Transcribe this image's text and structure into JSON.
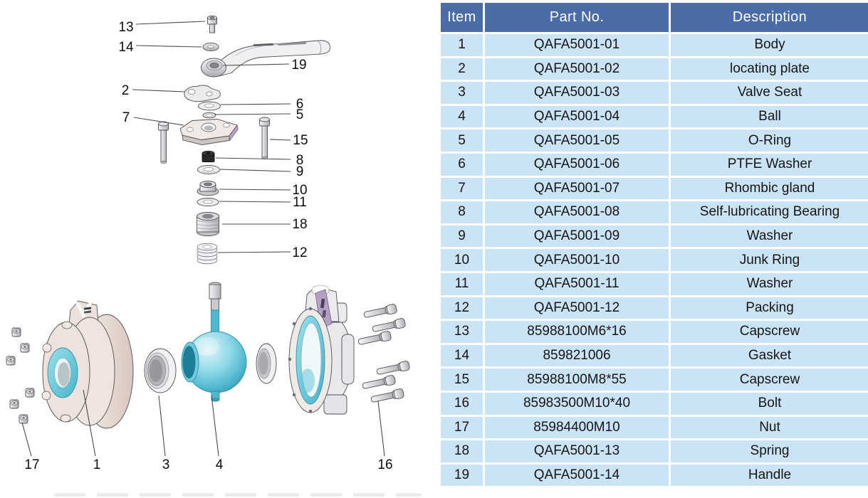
{
  "diagram": {
    "callouts": [
      "13",
      "14",
      "19",
      "2",
      "6",
      "5",
      "7",
      "15",
      "8",
      "9",
      "10",
      "11",
      "18",
      "12",
      "17",
      "1",
      "3",
      "4",
      "16"
    ]
  },
  "table": {
    "headers": [
      "Item",
      "Part No.",
      "Description"
    ],
    "rows": [
      [
        "1",
        "QAFA5001-01",
        "Body"
      ],
      [
        "2",
        "QAFA5001-02",
        "locating plate"
      ],
      [
        "3",
        "QAFA5001-03",
        "Valve Seat"
      ],
      [
        "4",
        "QAFA5001-04",
        "Ball"
      ],
      [
        "5",
        "QAFA5001-05",
        "O-Ring"
      ],
      [
        "6",
        "QAFA5001-06",
        "PTFE Washer"
      ],
      [
        "7",
        "QAFA5001-07",
        "Rhombic gland"
      ],
      [
        "8",
        "QAFA5001-08",
        "Self-lubricating Bearing"
      ],
      [
        "9",
        "QAFA5001-09",
        "Washer"
      ],
      [
        "10",
        "QAFA5001-10",
        "Junk Ring"
      ],
      [
        "11",
        "QAFA5001-11",
        "Washer"
      ],
      [
        "12",
        "QAFA5001-12",
        "Packing"
      ],
      [
        "13",
        "85988100M6*16",
        "Capscrew"
      ],
      [
        "14",
        "859821006",
        "Gasket"
      ],
      [
        "15",
        "85988100M8*55",
        "Capscrew"
      ],
      [
        "16",
        "85983500M10*40",
        "Bolt"
      ],
      [
        "17",
        "85984400M10",
        "Nut"
      ],
      [
        "18",
        "QAFA5001-13",
        "Spring"
      ],
      [
        "19",
        "QAFA5001-14",
        "Handle"
      ]
    ]
  },
  "colors": {
    "header_bg": "#4a6da8",
    "header_text": "#ffffff",
    "row_bg": "#cae3f5",
    "body_text": "#151515",
    "accent_cyan": "#57c0d4",
    "accent_purple": "#b49fc5",
    "outline": "#4f4f54"
  }
}
